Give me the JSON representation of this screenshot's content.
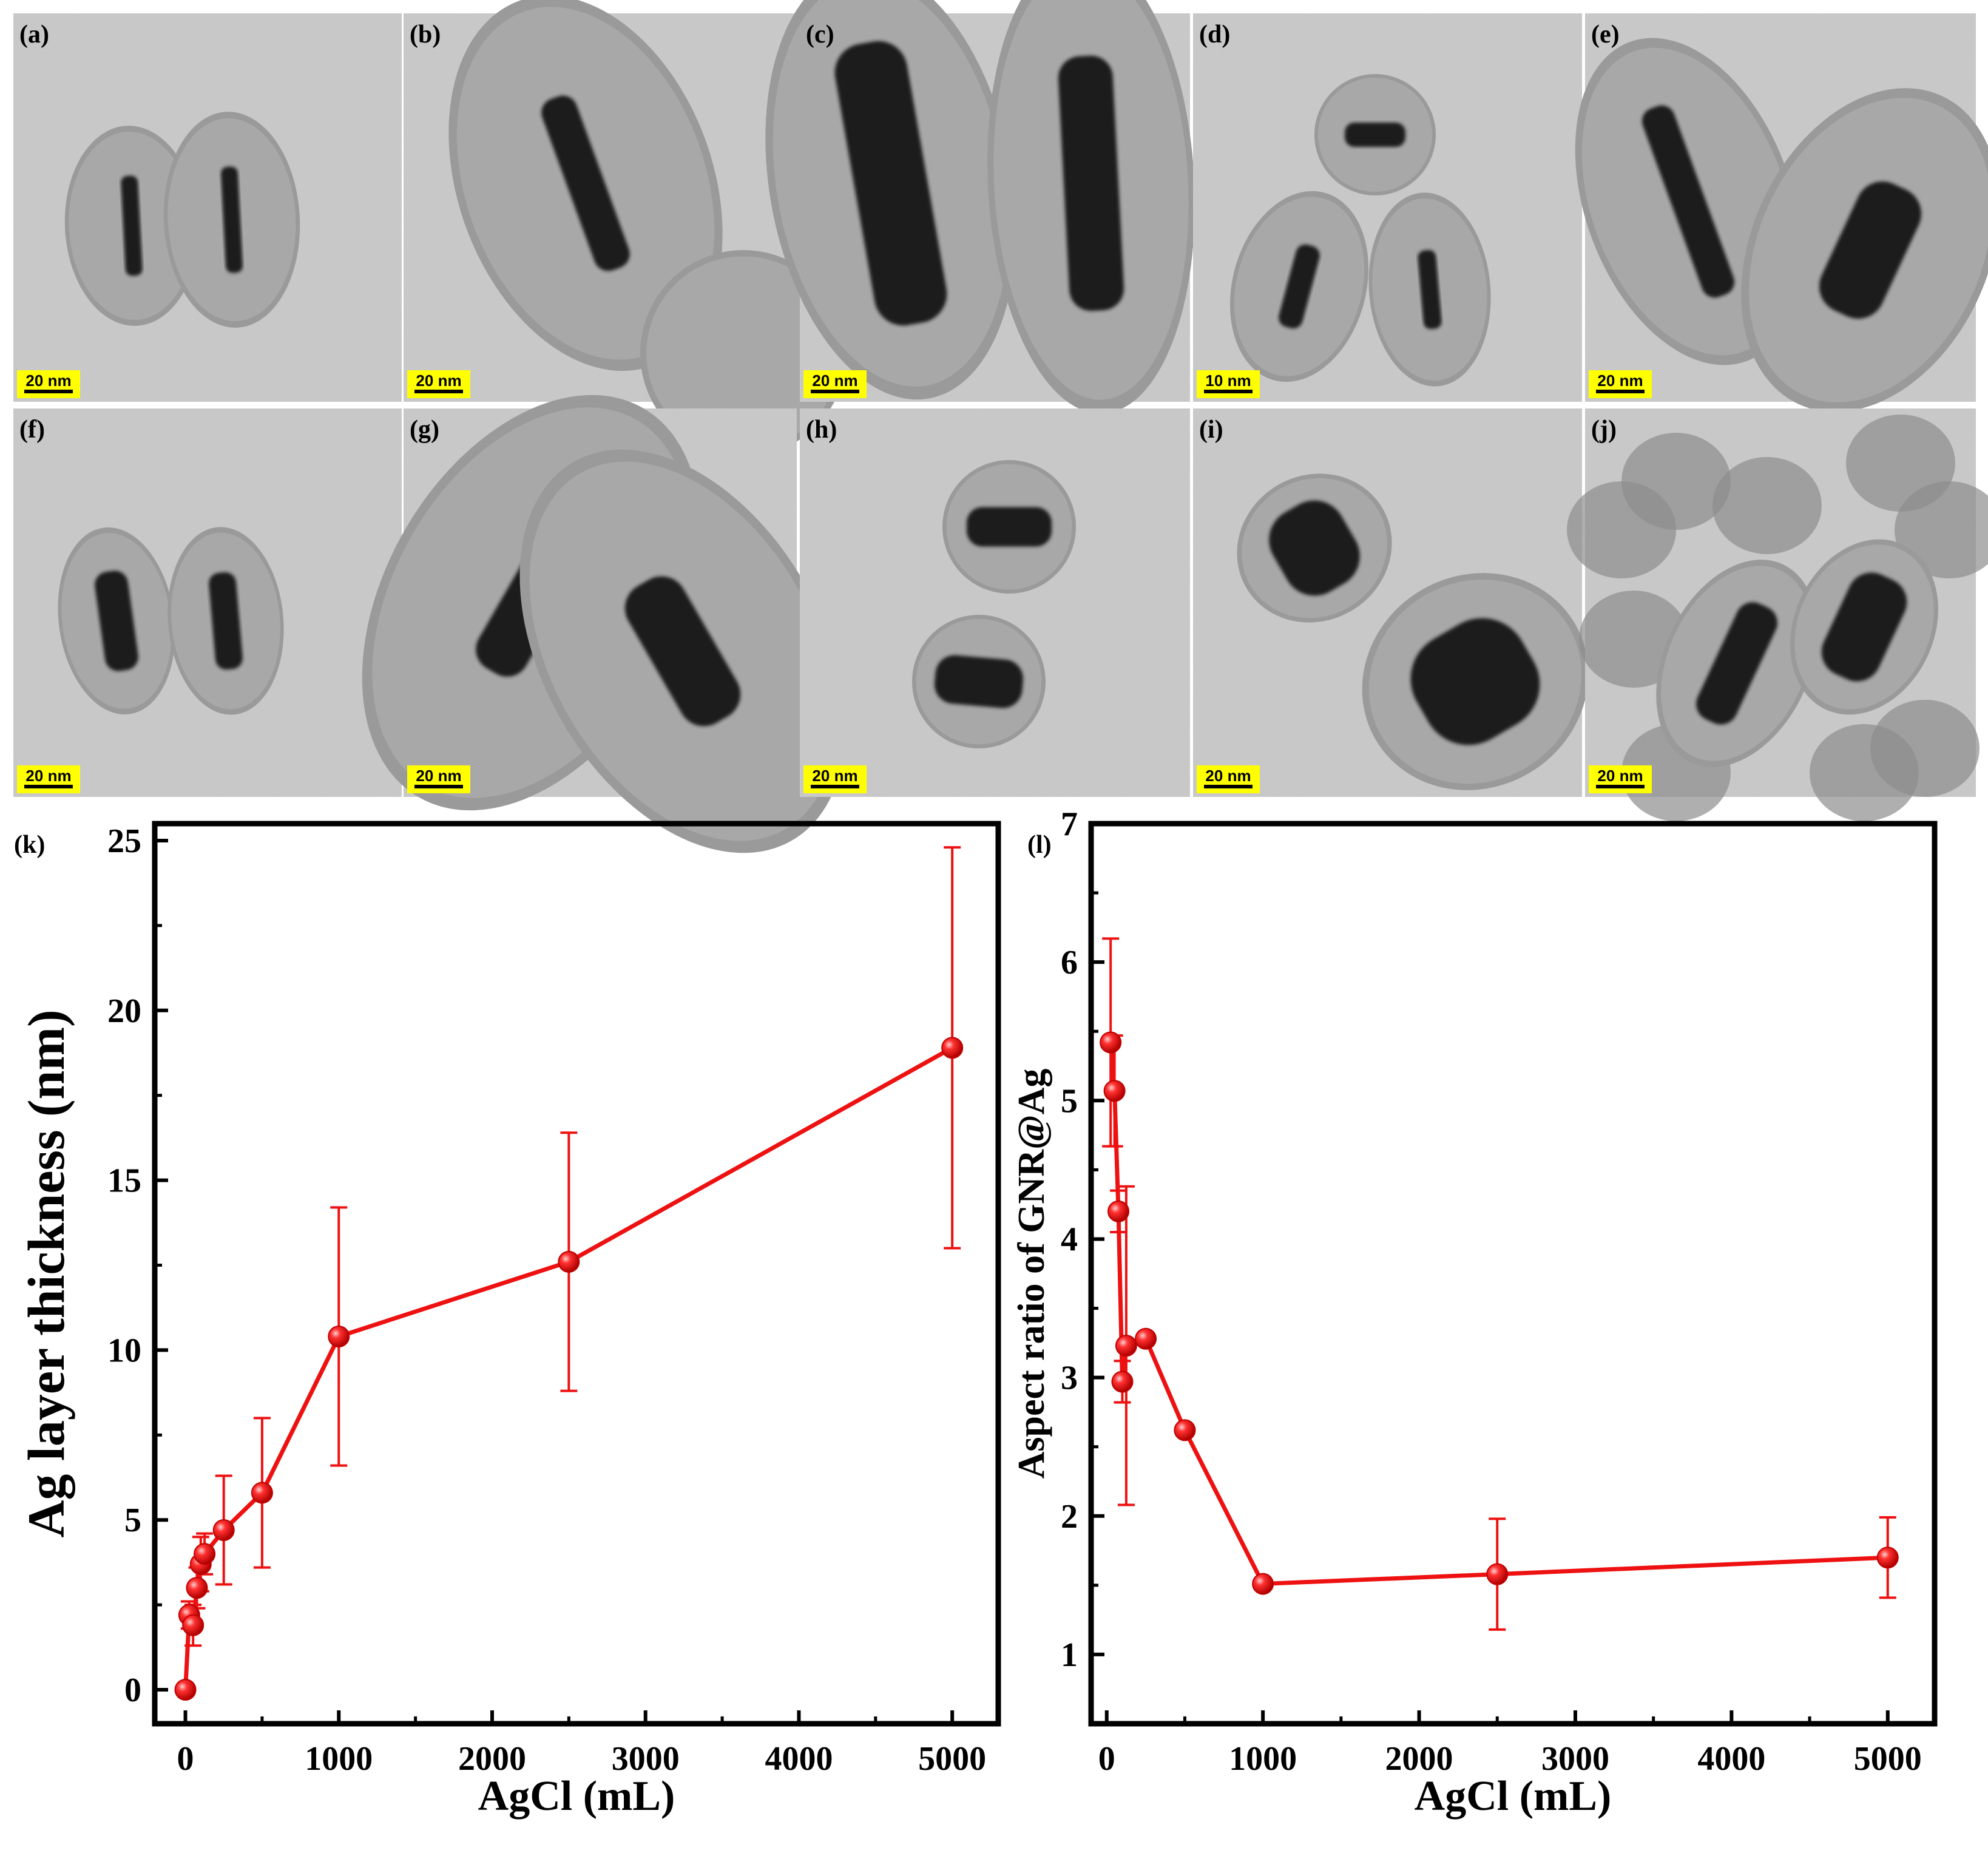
{
  "tem_panels": [
    {
      "label": "(a)",
      "scale": "20 nm"
    },
    {
      "label": "(b)",
      "scale": "20 nm"
    },
    {
      "label": "(c)",
      "scale": "20 nm"
    },
    {
      "label": "(d)",
      "scale": "10 nm"
    },
    {
      "label": "(e)",
      "scale": "20 nm"
    },
    {
      "label": "(f)",
      "scale": "20 nm"
    },
    {
      "label": "(g)",
      "scale": "20 nm"
    },
    {
      "label": "(h)",
      "scale": "20 nm"
    },
    {
      "label": "(i)",
      "scale": "20 nm"
    },
    {
      "label": "(j)",
      "scale": "20 nm"
    }
  ],
  "colors": {
    "series": "#ee1111",
    "scale_box": "#ffff00",
    "tem_background": "#c9c9c9",
    "shell": "#9a9a9a",
    "core": "#1a1a1a"
  },
  "chart_data": [
    {
      "panel_label": "(k)",
      "type": "line",
      "xlabel": "AgCl (mL)",
      "ylabel": "Ag layer thickness (nm)",
      "xlim": [
        -200,
        5300
      ],
      "ylim": [
        -1,
        25.5
      ],
      "xticks": [
        0,
        1000,
        2000,
        3000,
        4000,
        5000
      ],
      "yticks": [
        0,
        5,
        10,
        15,
        20,
        25
      ],
      "grid": false,
      "series": [
        {
          "x": [
            0,
            25,
            50,
            75,
            100,
            125,
            250,
            500,
            1000,
            2500,
            5000
          ],
          "y": [
            0,
            2.2,
            1.9,
            3.0,
            3.7,
            4.0,
            4.7,
            5.8,
            10.4,
            12.6,
            18.9
          ],
          "err": [
            0,
            0.4,
            0.6,
            0.6,
            0.8,
            0.6,
            1.6,
            2.2,
            3.8,
            3.8,
            5.9
          ]
        }
      ]
    },
    {
      "panel_label": "(l)",
      "type": "line",
      "xlabel": "AgCl (mL)",
      "ylabel": "Aspect ratio of GNR@Ag",
      "xlim": [
        -100,
        5300
      ],
      "ylim": [
        0.5,
        7
      ],
      "xticks": [
        0,
        1000,
        2000,
        3000,
        4000,
        5000
      ],
      "yticks": [
        1,
        2,
        3,
        4,
        5,
        6,
        7
      ],
      "grid": false,
      "series": [
        {
          "x": [
            25,
            50,
            75,
            100,
            125,
            250,
            500,
            1000,
            2500,
            5000
          ],
          "y": [
            5.42,
            5.07,
            4.2,
            2.97,
            3.23,
            3.28,
            2.62,
            1.51,
            1.58,
            1.7
          ],
          "err": [
            0.75,
            0.4,
            0.15,
            0.15,
            1.15,
            0,
            0,
            0,
            0.4,
            0.29
          ]
        }
      ]
    }
  ]
}
